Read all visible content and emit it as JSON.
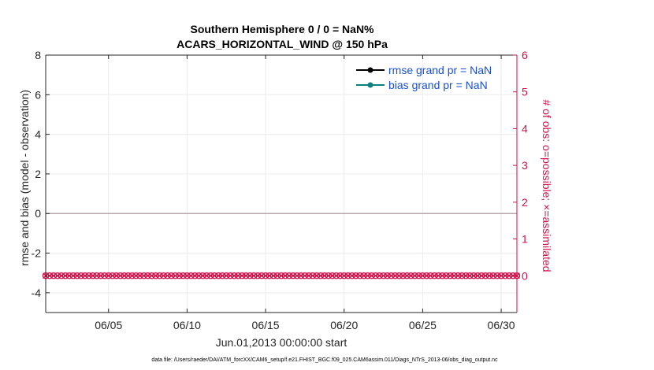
{
  "chart_data": {
    "type": "line",
    "title": [
      "Southern Hemisphere 0 / 0 = NaN%",
      "ACARS_HORIZONTAL_WIND @ 150 hPa"
    ],
    "xlabel": "Jun.01,2013 00:00:00 start",
    "ylabel": "rmse and bias (model - observation)",
    "ylabel_right": "# of obs: o=possible; ×=assimilated",
    "x_tick_labels": [
      "06/05",
      "06/10",
      "06/15",
      "06/20",
      "06/25",
      "06/30"
    ],
    "x_tick_values": [
      5,
      10,
      15,
      20,
      25,
      30
    ],
    "xlim": [
      1.0,
      31.0
    ],
    "ylim": [
      -5,
      8
    ],
    "y_ticks": [
      -4,
      -2,
      0,
      2,
      4,
      6,
      8
    ],
    "ylim_right": [
      -1,
      6
    ],
    "y_ticks_right": [
      0,
      1,
      2,
      3,
      4,
      5,
      6
    ],
    "grid": true,
    "legend_placement": "top-right",
    "series": [
      {
        "name": "rmse grand pr = NaN",
        "color": "#000000",
        "marker": "filled-circle",
        "values": []
      },
      {
        "name": "bias grand pr = NaN",
        "color": "#0e7f7f",
        "marker": "filled-circle",
        "values": []
      }
    ],
    "zero_line": {
      "y": 0,
      "color": "#b9a3ae"
    },
    "obs_counts": {
      "axis": "right",
      "color": "#d1104a",
      "markers": [
        "o",
        "x"
      ],
      "x_start": 1.0,
      "x_end": 31.0,
      "x_step": 0.25,
      "value": 0
    },
    "footnote": "data file: /Users/raeder/DAI/ATM_forcXX/CAM6_setup/f.e21.FHIST_BGC.f09_025.CAM6assim.011/Diags_NTrS_2013-06/obs_diag_output.nc"
  }
}
